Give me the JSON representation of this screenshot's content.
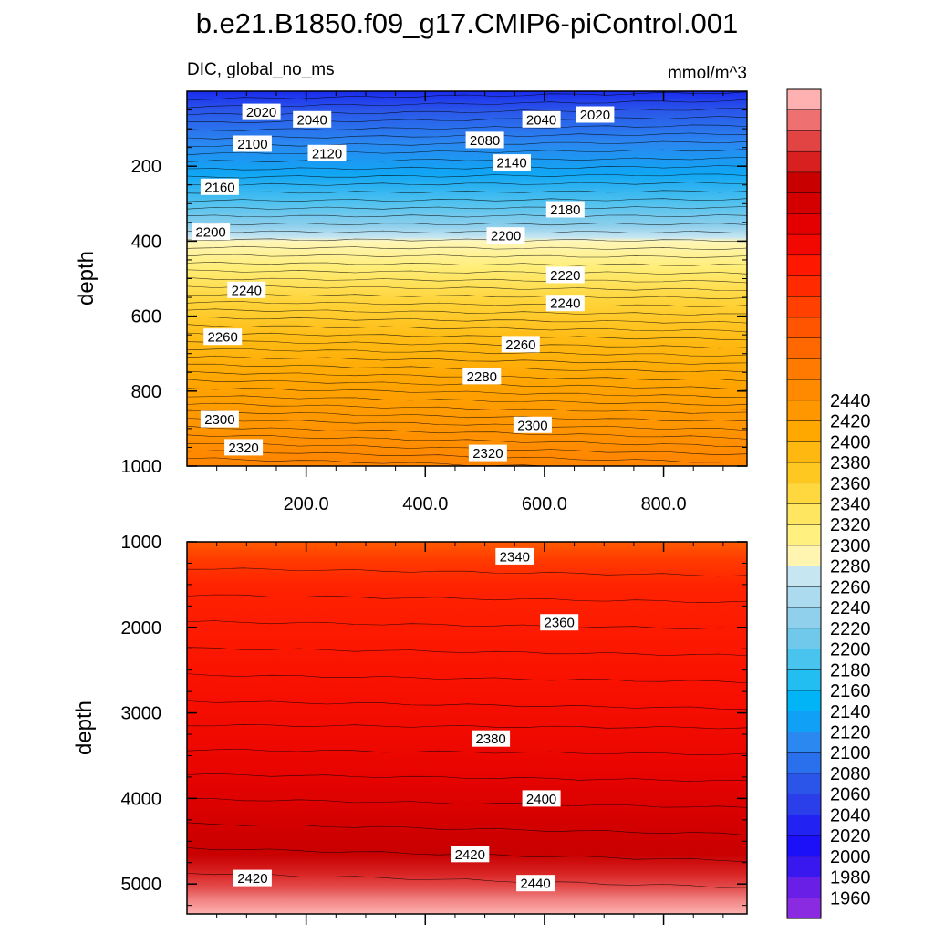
{
  "title": "b.e21.B1850.f09_g17.CMIP6-piControl.001",
  "chart_data": {
    "type": "heatmap",
    "variable_label": "DIC, global_no_ms",
    "units_label": "mmol/m^3",
    "x_tick_labels": [
      "200.0",
      "400.0",
      "600.0",
      "800.0"
    ],
    "x_ticks": [
      200,
      400,
      600,
      800
    ],
    "xlim": [
      0,
      940
    ],
    "panels": [
      {
        "name": "upper",
        "ylabel": "depth",
        "ylim": [
          0,
          1000
        ],
        "y_ticks": [
          200,
          400,
          600,
          800,
          1000
        ],
        "y_tick_labels": [
          "200",
          "400",
          "600",
          "800",
          "1000"
        ],
        "contour_labels": [
          {
            "text": "2020",
            "x": 125,
            "y": 55
          },
          {
            "text": "2040",
            "x": 210,
            "y": 75
          },
          {
            "text": "2040",
            "x": 595,
            "y": 75
          },
          {
            "text": "2020",
            "x": 685,
            "y": 62
          },
          {
            "text": "2080",
            "x": 500,
            "y": 130
          },
          {
            "text": "2100",
            "x": 110,
            "y": 140
          },
          {
            "text": "2120",
            "x": 235,
            "y": 165
          },
          {
            "text": "2140",
            "x": 545,
            "y": 190
          },
          {
            "text": "2160",
            "x": 55,
            "y": 255
          },
          {
            "text": "2180",
            "x": 635,
            "y": 315
          },
          {
            "text": "2200",
            "x": 40,
            "y": 375
          },
          {
            "text": "2200",
            "x": 535,
            "y": 385
          },
          {
            "text": "2220",
            "x": 635,
            "y": 490
          },
          {
            "text": "2240",
            "x": 100,
            "y": 530
          },
          {
            "text": "2240",
            "x": 635,
            "y": 565
          },
          {
            "text": "2260",
            "x": 60,
            "y": 655
          },
          {
            "text": "2260",
            "x": 560,
            "y": 675
          },
          {
            "text": "2280",
            "x": 495,
            "y": 760
          },
          {
            "text": "2300",
            "x": 55,
            "y": 875
          },
          {
            "text": "2300",
            "x": 580,
            "y": 890
          },
          {
            "text": "2320",
            "x": 95,
            "y": 950
          },
          {
            "text": "2320",
            "x": 505,
            "y": 965
          }
        ]
      },
      {
        "name": "lower",
        "ylabel": "depth",
        "ylim": [
          1000,
          5350
        ],
        "y_ticks": [
          1000,
          2000,
          3000,
          4000,
          5000
        ],
        "y_tick_labels": [
          "1000",
          "2000",
          "3000",
          "4000",
          "5000"
        ],
        "contour_labels": [
          {
            "text": "2340",
            "x": 550,
            "y": 1170
          },
          {
            "text": "2360",
            "x": 625,
            "y": 1940
          },
          {
            "text": "2380",
            "x": 510,
            "y": 3300
          },
          {
            "text": "2400",
            "x": 595,
            "y": 4000
          },
          {
            "text": "2420",
            "x": 475,
            "y": 4650
          },
          {
            "text": "2420",
            "x": 110,
            "y": 4930
          },
          {
            "text": "2440",
            "x": 585,
            "y": 4990
          }
        ]
      }
    ],
    "colorbar": {
      "tick_labels": [
        "1960",
        "1980",
        "2000",
        "2020",
        "2040",
        "2060",
        "2080",
        "2100",
        "2120",
        "2140",
        "2160",
        "2180",
        "2200",
        "2220",
        "2240",
        "2260",
        "2280",
        "2300",
        "2320",
        "2340",
        "2360",
        "2380",
        "2400",
        "2420",
        "2440"
      ],
      "colors": [
        "#8a2be2",
        "#6a1fe6",
        "#3818ee",
        "#1b10f8",
        "#2222f2",
        "#2a3eea",
        "#2a55e8",
        "#2a70ec",
        "#2a88f0",
        "#10a0f6",
        "#00b4f6",
        "#22bef2",
        "#48c4ef",
        "#70c8ea",
        "#90d0ec",
        "#acdaee",
        "#c6e6f2",
        "#fff5b0",
        "#fff080",
        "#ffe660",
        "#ffd840",
        "#ffc820",
        "#ffb810",
        "#ffa800",
        "#ff9800",
        "#ff8a00",
        "#ff7a00",
        "#ff6800",
        "#ff5400",
        "#ff4000",
        "#ff2a00",
        "#ff1800",
        "#f20800",
        "#e40000",
        "#d40000",
        "#c80000",
        "#d82020",
        "#e24444",
        "#ee7070",
        "#ffb0b0"
      ]
    }
  }
}
